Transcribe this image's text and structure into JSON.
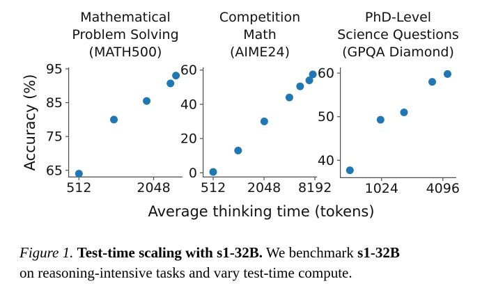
{
  "figure": {
    "ylabel": "Accuracy (%)",
    "xlabel": "Average thinking time (tokens)",
    "dot_color": "#1f77b4",
    "spine_color": "#4d4d4d"
  },
  "chart_data": [
    {
      "type": "scatter",
      "title": "Mathematical Problem Solving (MATH500)",
      "title_lines": [
        "Mathematical",
        "Problem Solving",
        "(MATH500)"
      ],
      "xlabel": "Average thinking time (tokens)",
      "ylabel": "Accuracy (%)",
      "xscale": "log2",
      "grid": false,
      "xlim": [
        420,
        3500
      ],
      "ylim": [
        62.9,
        95.4
      ],
      "xticks": [
        512,
        2048
      ],
      "yticks": [
        65,
        75,
        85,
        95
      ],
      "points": [
        [
          512,
          64
        ],
        [
          980,
          80
        ],
        [
          1800,
          85.5
        ],
        [
          2800,
          90.7
        ],
        [
          3100,
          93
        ]
      ]
    },
    {
      "type": "scatter",
      "title": "Competition Math (AIME24)",
      "title_lines": [
        "Competition",
        "Math",
        "(AIME24)"
      ],
      "xlabel": "Average thinking time (tokens)",
      "ylabel": "Accuracy (%)",
      "xscale": "log2",
      "grid": false,
      "xlim": [
        385,
        8650
      ],
      "ylim": [
        -2.7,
        61.5
      ],
      "xticks": [
        512,
        2048,
        8192
      ],
      "yticks": [
        0,
        20,
        40,
        60
      ],
      "points": [
        [
          512,
          0.5
        ],
        [
          1010,
          13
        ],
        [
          2060,
          30
        ],
        [
          4080,
          44
        ],
        [
          5470,
          50.5
        ],
        [
          7030,
          54
        ],
        [
          7740,
          57.5
        ]
      ]
    },
    {
      "type": "scatter",
      "title": "PhD-Level Science Questions (GPQA Diamond)",
      "title_lines": [
        "PhD-Level",
        "Science Questions",
        "(GPQA Diamond)"
      ],
      "xlabel": "Average thinking time (tokens)",
      "ylabel": "Accuracy (%)",
      "xscale": "log2",
      "grid": false,
      "xlim": [
        399,
        5545
      ],
      "ylim": [
        35.9,
        61.3
      ],
      "xticks": [
        1024,
        4096
      ],
      "yticks": [
        40,
        50,
        60
      ],
      "points": [
        [
          500,
          37.7
        ],
        [
          1000,
          49.3
        ],
        [
          1700,
          51
        ],
        [
          3220,
          58
        ],
        [
          4550,
          59.8
        ]
      ]
    }
  ],
  "caption": {
    "lines": [
      [
        {
          "text": "Figure 1.",
          "style": "italic"
        },
        {
          "text": " ",
          "style": ""
        },
        {
          "text": "Test-time scaling with s1-32B.",
          "style": "bold"
        },
        {
          "text": " We benchmark ",
          "style": ""
        },
        {
          "text": "s1-32B",
          "style": "bold"
        }
      ],
      [
        {
          "text": "on reasoning-intensive tasks and vary test-time compute.",
          "style": ""
        }
      ]
    ]
  }
}
